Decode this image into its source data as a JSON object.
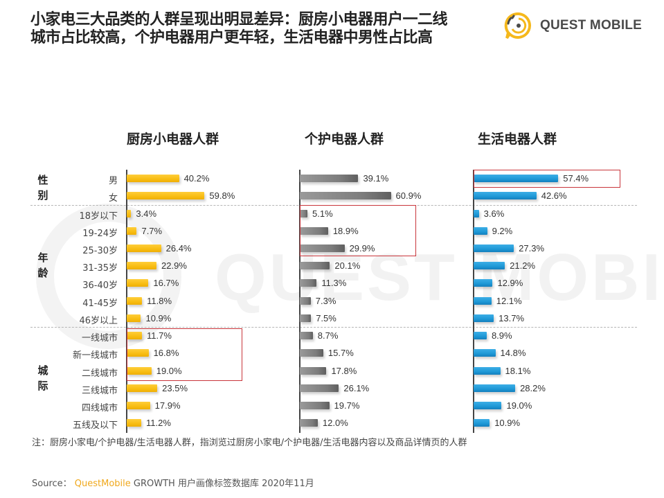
{
  "title": {
    "line1": "小家电三大品类的人群呈现出明显差异：厨房小电器用户一二线",
    "line2": "城市占比较高，个护电器用户更年轻，生活电器中男性占比高"
  },
  "logo": {
    "text": "QUEST MOBILE",
    "icon": "questmobile-logo-icon",
    "color": "#f5b81c"
  },
  "watermark": {
    "text": "QUEST MOBILE"
  },
  "groups": [
    {
      "id": "gender",
      "label_line1": "性",
      "label_line2": "别"
    },
    {
      "id": "age",
      "label_line1": "年",
      "label_line2": "龄"
    },
    {
      "id": "city",
      "label_line1": "城",
      "label_line2": "际"
    }
  ],
  "note": "注：厨房小家电/个护电器/生活电器人群，指浏览过厨房小家电/个护电器/生活电器内容以及商品详情页的人群",
  "source": {
    "prefix": "Source：",
    "brand": "QuestMobile",
    "rest": " GROWTH 用户画像标签数据库 2020年11月"
  },
  "colors": {
    "kitchen": "#f8bd12",
    "personal": "#7c7c7c",
    "living": "#1e98d6",
    "highlight": "#c8343a"
  },
  "chart_data": {
    "type": "bar",
    "orientation": "horizontal",
    "title": "小家电三大品类的人群呈现出明显差异：厨房小电器用户一二线城市占比较高，个护电器用户更年轻，生活电器中男性占比高",
    "categories": [
      "男",
      "女",
      "18岁以下",
      "19-24岁",
      "25-30岁",
      "31-35岁",
      "36-40岁",
      "41-45岁",
      "46岁以上",
      "一线城市",
      "新一线城市",
      "二线城市",
      "三线城市",
      "四线城市",
      "五线及以下"
    ],
    "category_groups": [
      {
        "name": "性别",
        "members": [
          "男",
          "女"
        ]
      },
      {
        "name": "年龄",
        "members": [
          "18岁以下",
          "19-24岁",
          "25-30岁",
          "31-35岁",
          "36-40岁",
          "41-45岁",
          "46岁以上"
        ]
      },
      {
        "name": "城际",
        "members": [
          "一线城市",
          "新一线城市",
          "二线城市",
          "三线城市",
          "四线城市",
          "五线及以下"
        ]
      }
    ],
    "series": [
      {
        "name": "厨房小电器人群",
        "color": "#f8bd12",
        "values": [
          40.2,
          59.8,
          3.4,
          7.7,
          26.4,
          22.9,
          16.7,
          11.8,
          10.9,
          11.7,
          16.8,
          19.0,
          23.5,
          17.9,
          11.2
        ],
        "labels": [
          "40.2%",
          "59.8%",
          "3.4%",
          "7.7%",
          "26.4%",
          "22.9%",
          "16.7%",
          "11.8%",
          "10.9%",
          "11.7%",
          "16.8%",
          "19.0%",
          "23.5%",
          "17.9%",
          "11.2%"
        ],
        "highlighted": [
          "一线城市",
          "新一线城市",
          "二线城市"
        ]
      },
      {
        "name": "个护电器人群",
        "color": "#7c7c7c",
        "values": [
          39.1,
          60.9,
          5.1,
          18.9,
          29.9,
          20.1,
          11.3,
          7.3,
          7.5,
          8.7,
          15.7,
          17.8,
          26.1,
          19.7,
          12.0
        ],
        "labels": [
          "39.1%",
          "60.9%",
          "5.1%",
          "18.9%",
          "29.9%",
          "20.1%",
          "11.3%",
          "7.3%",
          "7.5%",
          "8.7%",
          "15.7%",
          "17.8%",
          "26.1%",
          "19.7%",
          "12.0%"
        ],
        "highlighted": [
          "18岁以下",
          "19-24岁",
          "25-30岁"
        ]
      },
      {
        "name": "生活电器人群",
        "color": "#1e98d6",
        "values": [
          57.4,
          42.6,
          3.6,
          9.2,
          27.3,
          21.2,
          12.9,
          12.1,
          13.7,
          8.9,
          14.8,
          18.1,
          28.2,
          19.0,
          10.9
        ],
        "labels": [
          "57.4%",
          "42.6%",
          "3.6%",
          "9.2%",
          "27.3%",
          "21.2%",
          "12.9%",
          "12.1%",
          "13.7%",
          "8.9%",
          "14.8%",
          "18.1%",
          "28.2%",
          "19.0%",
          "10.9%"
        ],
        "highlighted": [
          "男"
        ]
      }
    ],
    "xlabel": "",
    "ylabel": "",
    "unit": "%",
    "grid": false,
    "legend": "column headers above each panel"
  }
}
